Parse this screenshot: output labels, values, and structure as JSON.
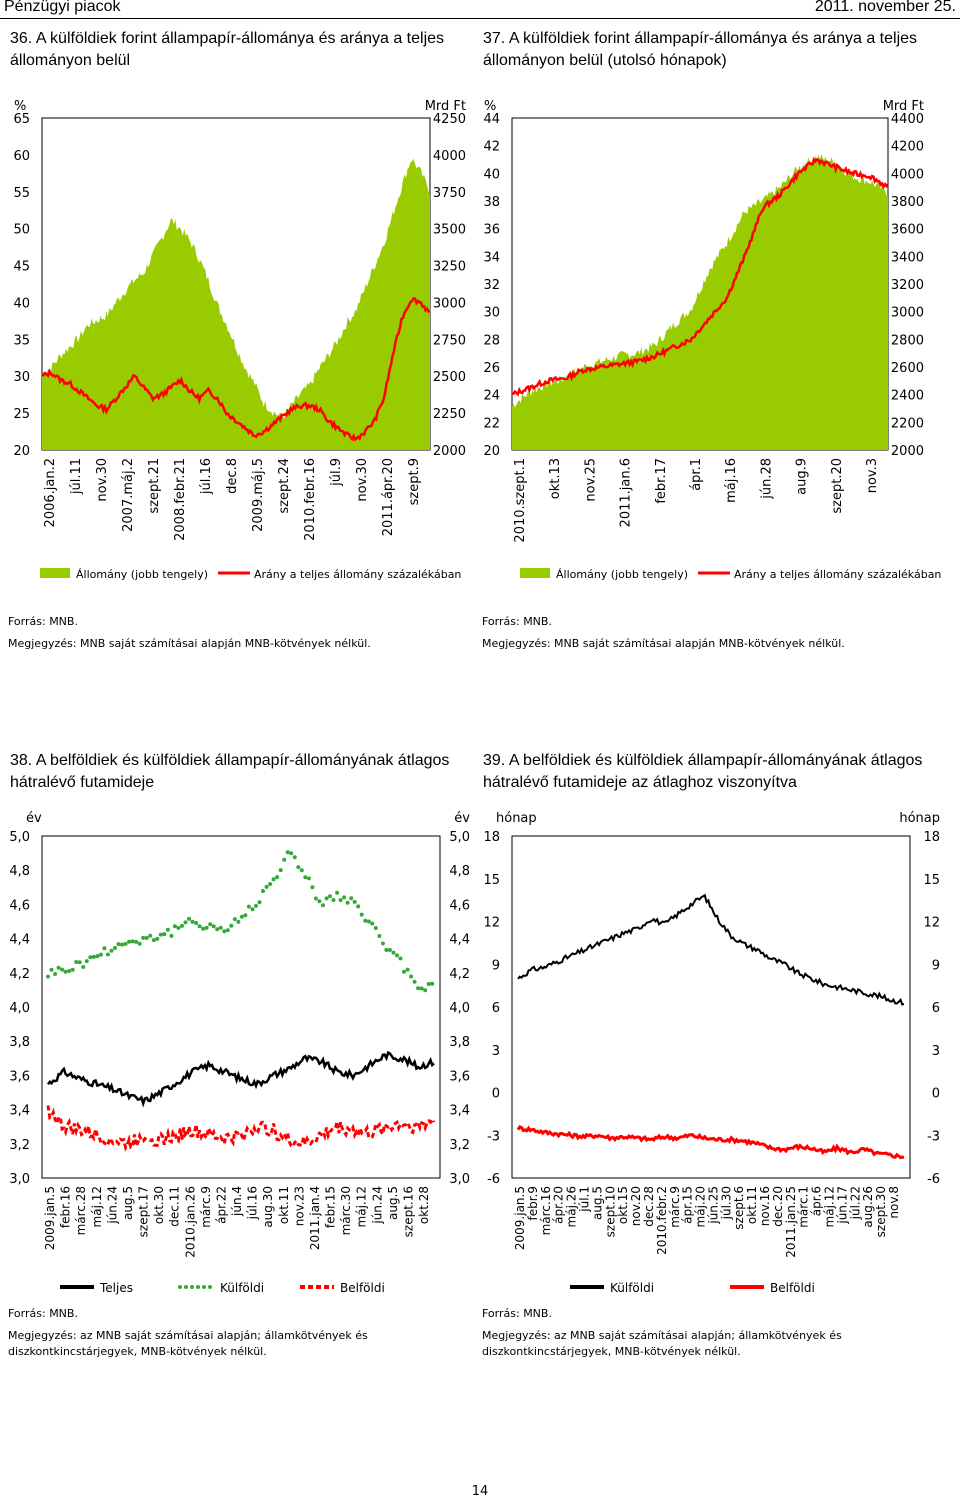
{
  "header": {
    "left": "Pénzügyi piacok",
    "right": "2011. november 25."
  },
  "page_number": "14",
  "charts": [
    {
      "num": "36.",
      "title": "A külföldiek forint állampapír-állománya és aránya a teljes állományon belül",
      "source": "Forrás: MNB.",
      "note": "Megjegyzés: MNB saját számításai alapján MNB-kötvények nélkül.",
      "legend": [
        "Állomány (jobb tengely)",
        "Arány a teljes állomány százalékában"
      ],
      "colors": {
        "area": "#99cc00",
        "line": "#ff0000"
      }
    },
    {
      "num": "37.",
      "title": "A külföldiek forint állampapír-állománya és aránya a teljes állományon belül (utolsó hónapok)",
      "source": "Forrás: MNB.",
      "note": "Megjegyzés: MNB saját számításai alapján MNB-kötvények nélkül.",
      "legend": [
        "Állomány (jobb tengely)",
        "Arány a teljes állomány százalékában"
      ],
      "colors": {
        "area": "#99cc00",
        "line": "#ff0000"
      }
    },
    {
      "num": "38.",
      "title": "A belföldiek és külföldiek állampapír-állományának átlagos hátralévő futamideje",
      "source": "Forrás: MNB.",
      "note": "Megjegyzés: az MNB saját számításai alapján; államkötvények és diszkontkincstárjegyek, MNB-kötvények nélkül.",
      "legend": [
        "Teljes",
        "Külföldi",
        "Belföldi"
      ],
      "colors": {
        "teljes": "#000000",
        "kulfoldi": "#33aa33",
        "belfoldi": "#ff0000"
      }
    },
    {
      "num": "39.",
      "title": "A belföldiek és külföldiek állampapír-állományának átlagos hátralévő futamideje az átlaghoz viszonyítva",
      "source": "Forrás: MNB.",
      "note": "Megjegyzés: az MNB saját számításai alapján; államkötvények és diszkontkincstárjegyek, MNB-kötvények nélkül.",
      "legend": [
        "Külföldi",
        "Belföldi"
      ],
      "colors": {
        "kulfoldi": "#000000",
        "belfoldi": "#ff0000"
      }
    }
  ],
  "chart_data": [
    {
      "type": "area+line",
      "left_unit": "%",
      "right_unit": "Mrd Ft",
      "y_left_ticks": [
        "65",
        "60",
        "55",
        "50",
        "45",
        "40",
        "35",
        "30",
        "25",
        "20"
      ],
      "y_right_ticks": [
        "4250",
        "4000",
        "3750",
        "3500",
        "3250",
        "3000",
        "2750",
        "2500",
        "2250",
        "2000"
      ],
      "ylim_left": [
        20,
        65
      ],
      "ylim_right": [
        2000,
        4250
      ],
      "x_ticks": [
        "2006.jan.2",
        "júl.11",
        "nov.30",
        "2007.máj.2",
        "szept.21",
        "2008.febr.21",
        "júl.16",
        "dec.8",
        "2009.máj.5",
        "szept.24",
        "2010.febr.16",
        "júl.9",
        "nov.30",
        "2011.ápr.20",
        "szept.9"
      ],
      "area_series": {
        "name": "Állomány (jobb tengely)",
        "axis": "right",
        "values": [
          2520,
          2560,
          2640,
          2700,
          2760,
          2850,
          2880,
          2910,
          3000,
          3080,
          3150,
          3200,
          3320,
          3440,
          3560,
          3500,
          3420,
          3300,
          3150,
          2980,
          2850,
          2700,
          2560,
          2450,
          2320,
          2260,
          2220,
          2300,
          2380,
          2440,
          2550,
          2640,
          2740,
          2860,
          2950,
          3100,
          3250,
          3400,
          3600,
          3800,
          3980,
          3880,
          3760
        ]
      },
      "line_series": {
        "name": "Arány a teljes állomány százalékában",
        "axis": "left",
        "values": [
          30.0,
          30.5,
          29.5,
          29.0,
          28.0,
          27.0,
          26.0,
          25.5,
          27.0,
          28.5,
          30.0,
          28.5,
          27.0,
          27.5,
          28.5,
          29.5,
          28.0,
          27.0,
          28.0,
          27.0,
          25.0,
          24.0,
          23.0,
          22.0,
          22.5,
          23.5,
          24.5,
          25.5,
          26.0,
          26.0,
          25.5,
          24.0,
          23.0,
          22.0,
          21.5,
          22.5,
          24.0,
          27.0,
          33.0,
          38.0,
          40.5,
          40.0,
          38.5
        ]
      }
    },
    {
      "type": "area+line",
      "left_unit": "%",
      "right_unit": "Mrd Ft",
      "y_left_ticks": [
        "44",
        "42",
        "40",
        "38",
        "36",
        "34",
        "32",
        "30",
        "28",
        "26",
        "24",
        "22",
        "20"
      ],
      "y_right_ticks": [
        "4400",
        "4200",
        "4000",
        "3800",
        "3600",
        "3400",
        "3200",
        "3000",
        "2800",
        "2600",
        "2400",
        "2200",
        "2000"
      ],
      "ylim_left": [
        20,
        44
      ],
      "ylim_right": [
        2000,
        4400
      ],
      "x_ticks": [
        "2010.szept.1",
        "okt.13",
        "nov.25",
        "2011.jan.6",
        "febr.17",
        "ápr.1",
        "máj.16",
        "jún.28",
        "aug.9",
        "szept.20",
        "nov.3"
      ],
      "area_series": {
        "name": "Állomány (jobb tengely)",
        "axis": "right",
        "values": [
          2320,
          2420,
          2480,
          2520,
          2600,
          2640,
          2680,
          2700,
          2760,
          2900,
          3020,
          3300,
          3500,
          3720,
          3800,
          3900,
          4040,
          4120,
          4080,
          3980,
          3940,
          3860
        ]
      },
      "line_series": {
        "name": "Arány a teljes állomány százalékában",
        "axis": "left",
        "values": [
          24.0,
          24.5,
          25.0,
          25.2,
          25.8,
          26.0,
          26.2,
          26.4,
          26.8,
          27.4,
          28.0,
          29.5,
          31.0,
          34.0,
          37.5,
          38.5,
          40.0,
          41.0,
          40.5,
          40.0,
          39.8,
          39.0
        ]
      }
    },
    {
      "type": "line",
      "unit": "év",
      "y_ticks": [
        "5,0",
        "4,8",
        "4,6",
        "4,4",
        "4,2",
        "4,0",
        "3,8",
        "3,6",
        "3,4",
        "3,2",
        "3,0"
      ],
      "ylim": [
        3.0,
        5.0
      ],
      "x_ticks": [
        "2009.jan.5",
        "febr.16",
        "márc.28",
        "máj.12",
        "jún.24",
        "aug.5",
        "szept.17",
        "okt.30",
        "dec.11",
        "2010.jan.26",
        "márc.9",
        "ápr.22",
        "jún.4",
        "júl.16",
        "aug.30",
        "okt.11",
        "nov.23",
        "2011.jan.4",
        "febr.15",
        "márc.30",
        "máj.12",
        "jún.24",
        "aug.5",
        "szept.16",
        "okt.28"
      ],
      "series": [
        {
          "name": "Teljes",
          "values": [
            3.55,
            3.62,
            3.58,
            3.55,
            3.52,
            3.48,
            3.45,
            3.5,
            3.56,
            3.62,
            3.66,
            3.62,
            3.58,
            3.55,
            3.6,
            3.64,
            3.7,
            3.68,
            3.62,
            3.6,
            3.66,
            3.72,
            3.7,
            3.65,
            3.68
          ]
        },
        {
          "name": "Külföldi",
          "values": [
            4.2,
            4.22,
            4.25,
            4.3,
            4.35,
            4.38,
            4.4,
            4.42,
            4.45,
            4.5,
            4.48,
            4.45,
            4.52,
            4.62,
            4.75,
            4.9,
            4.78,
            4.6,
            4.65,
            4.6,
            4.5,
            4.35,
            4.25,
            4.1,
            4.15
          ]
        },
        {
          "name": "Belföldi",
          "values": [
            3.4,
            3.3,
            3.28,
            3.25,
            3.22,
            3.2,
            3.25,
            3.22,
            3.25,
            3.28,
            3.25,
            3.23,
            3.25,
            3.3,
            3.28,
            3.22,
            3.2,
            3.25,
            3.3,
            3.28,
            3.26,
            3.3,
            3.32,
            3.3,
            3.34
          ]
        }
      ]
    },
    {
      "type": "line",
      "unit": "hónap",
      "y_ticks": [
        "18",
        "15",
        "12",
        "9",
        "6",
        "3",
        "0",
        "-3",
        "-6"
      ],
      "ylim": [
        -6,
        18
      ],
      "x_ticks": [
        "2009.jan.5",
        "febr.9",
        "márc.16",
        "ápr.20",
        "máj.26",
        "júl.1",
        "aug.5",
        "szept.10",
        "okt.15",
        "nov.20",
        "dec.28",
        "2010.febr.2",
        "márc.9",
        "ápr.15",
        "máj.20",
        "jún.25",
        "júl.30",
        "szept.6",
        "okt.11",
        "nov.16",
        "dec.20",
        "2011.jan.25",
        "márc.1",
        "ápr.6",
        "máj.12",
        "jún.17",
        "júl.22",
        "aug.26",
        "szept.30",
        "nov.8"
      ],
      "series": [
        {
          "name": "Külföldi",
          "values": [
            8.0,
            8.6,
            8.8,
            9.2,
            9.6,
            10.0,
            10.4,
            10.8,
            11.2,
            11.5,
            12.2,
            11.8,
            12.5,
            13.2,
            13.8,
            12.2,
            11.0,
            10.4,
            10.0,
            9.4,
            9.0,
            8.4,
            8.0,
            7.6,
            7.4,
            7.2,
            7.0,
            6.8,
            6.5,
            6.3
          ]
        },
        {
          "name": "Belföldi",
          "values": [
            -2.5,
            -2.6,
            -2.8,
            -2.9,
            -3.0,
            -3.1,
            -3.0,
            -3.2,
            -3.1,
            -3.2,
            -3.3,
            -3.1,
            -3.2,
            -3.0,
            -3.2,
            -3.3,
            -3.3,
            -3.4,
            -3.6,
            -3.9,
            -4.0,
            -3.8,
            -3.9,
            -4.2,
            -3.9,
            -4.2,
            -4.0,
            -4.3,
            -4.4,
            -4.5
          ]
        }
      ]
    }
  ]
}
